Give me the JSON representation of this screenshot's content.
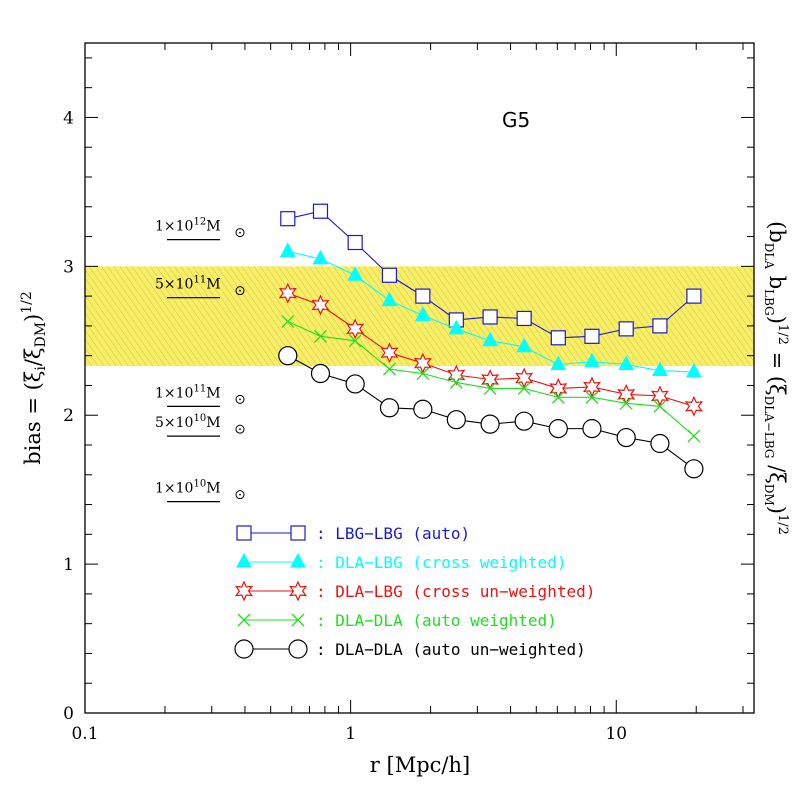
{
  "chart_data": {
    "type": "line",
    "title": "",
    "panel_label": "G5",
    "xlabel": "r [Mpc/h]",
    "ylabel": "bias = (ξ_i/ξ_DM)^1/2",
    "ylabel_parts": {
      "prefix": "bias = (ξ",
      "sub1": "i",
      "mid": "/ξ",
      "sub2": "DM",
      "close": ")",
      "sup": "1/2"
    },
    "ylabel_right": "(b_DLA b_LBG)^1/2 = (ξ_DLA-LBG / ξ_DM)^1/2",
    "ylabel_right_parts": {
      "p1": "(b",
      "s1": "DLA",
      "p2": " b",
      "s2": "LBG",
      "p3": ")",
      "e1": "1/2",
      "p4": " = (ξ",
      "s3": "DLA−LBG",
      "p5": " /ξ",
      "s4": "DM",
      "p6": ")",
      "e2": "1/2"
    },
    "xscale": "log",
    "xlim": [
      0.1,
      33
    ],
    "ylim": [
      0,
      4.5
    ],
    "xticks": [
      0.1,
      1,
      10
    ],
    "xtick_labels": [
      "0.1",
      "1",
      "10"
    ],
    "yticks": [
      0,
      1,
      2,
      3,
      4
    ],
    "ytick_labels": [
      "0",
      "1",
      "2",
      "3",
      "4"
    ],
    "grid": false,
    "legend_position": "bottom-center",
    "band": {
      "y_low": 2.33,
      "y_high": 3.0,
      "color": "#f5e84a"
    },
    "mass_labels": [
      {
        "mantissa": "1×10",
        "exp": "12",
        "unit": "M",
        "y": 3.24
      },
      {
        "mantissa": "5×10",
        "exp": "11",
        "unit": "M",
        "y": 2.85
      },
      {
        "mantissa": "1×10",
        "exp": "11",
        "unit": "M",
        "y": 2.12
      },
      {
        "mantissa": "5×10",
        "exp": "10",
        "unit": "M",
        "y": 1.92
      },
      {
        "mantissa": "1×10",
        "exp": "10",
        "unit": "M",
        "y": 1.48
      }
    ],
    "x": [
      0.58,
      0.77,
      1.04,
      1.4,
      1.87,
      2.5,
      3.35,
      4.5,
      6.05,
      8.1,
      10.9,
      14.6,
      19.6
    ],
    "series": [
      {
        "name": ": LBG−LBG (auto)",
        "marker": "square",
        "color": "#1a1acc",
        "values": [
          3.32,
          3.37,
          3.16,
          2.94,
          2.8,
          2.64,
          2.66,
          2.65,
          2.52,
          2.53,
          2.58,
          2.6,
          2.8
        ]
      },
      {
        "name": ": DLA−LBG (cross weighted)",
        "marker": "triangle",
        "color": "#00ffff",
        "values": [
          3.1,
          3.05,
          2.94,
          2.77,
          2.67,
          2.58,
          2.5,
          2.46,
          2.34,
          2.36,
          2.34,
          2.3,
          2.29
        ]
      },
      {
        "name": ": DLA−LBG (cross un−weighted)",
        "marker": "star",
        "color": "#ee1111",
        "values": [
          2.82,
          2.74,
          2.58,
          2.42,
          2.35,
          2.27,
          2.24,
          2.25,
          2.18,
          2.19,
          2.14,
          2.13,
          2.06
        ]
      },
      {
        "name": ": DLA−DLA (auto weighted)",
        "marker": "cross",
        "color": "#22dd22",
        "values": [
          2.63,
          2.53,
          2.5,
          2.31,
          2.28,
          2.22,
          2.18,
          2.18,
          2.12,
          2.12,
          2.08,
          2.06,
          1.86
        ]
      },
      {
        "name": ": DLA−DLA (auto un−weighted)",
        "marker": "circle",
        "color": "#000000",
        "values": [
          2.4,
          2.28,
          2.21,
          2.05,
          2.04,
          1.97,
          1.94,
          1.96,
          1.91,
          1.91,
          1.85,
          1.81,
          1.64
        ]
      }
    ]
  }
}
